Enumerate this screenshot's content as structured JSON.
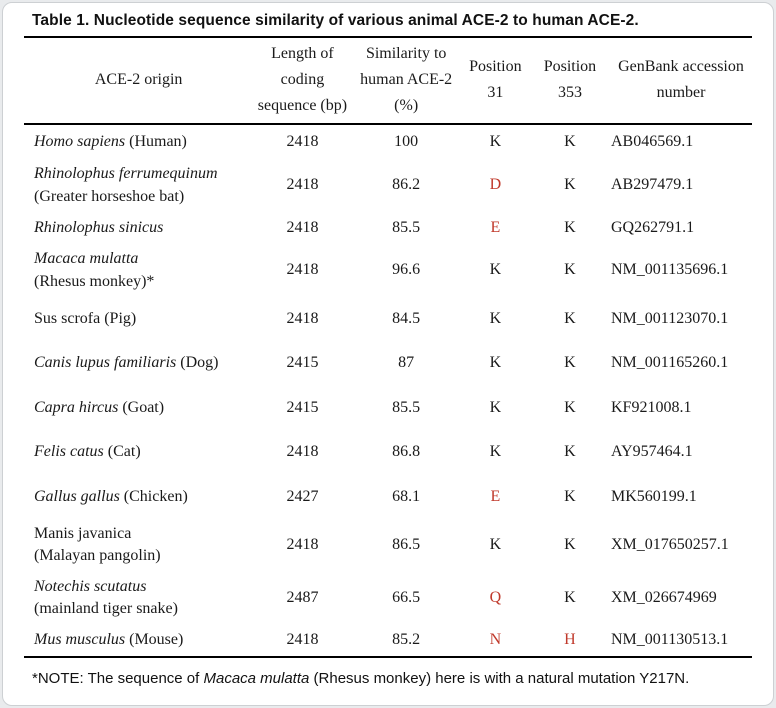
{
  "card": {
    "title": "Table 1. Nucleotide sequence similarity of various animal ACE-2 to human ACE-2."
  },
  "table": {
    "columns": [
      "ACE-2 origin",
      "Length of coding sequence (bp)",
      "Similarity to human ACE-2 (%)",
      "Position 31",
      "Position 353",
      "GenBank accession number"
    ],
    "rows": [
      {
        "origin": [
          {
            "t": "Homo sapiens",
            "i": true
          },
          {
            "t": " (Human)",
            "i": false
          }
        ],
        "length": "2418",
        "similarity": "100",
        "pos31": {
          "v": "K",
          "red": false
        },
        "pos353": {
          "v": "K",
          "red": false
        },
        "genbank": "AB046569.1"
      },
      {
        "origin": [
          {
            "t": "Rhinolophus ferrumequinum",
            "i": true
          },
          {
            "t": "(Greater horseshoe bat)",
            "i": false,
            "br": true
          }
        ],
        "length": "2418",
        "similarity": "86.2",
        "pos31": {
          "v": "D",
          "red": true
        },
        "pos353": {
          "v": "K",
          "red": false
        },
        "genbank": "AB297479.1"
      },
      {
        "origin": [
          {
            "t": "Rhinolophus sinicus",
            "i": true
          }
        ],
        "length": "2418",
        "similarity": "85.5",
        "pos31": {
          "v": "E",
          "red": true
        },
        "pos353": {
          "v": "K",
          "red": false
        },
        "genbank": "GQ262791.1"
      },
      {
        "origin": [
          {
            "t": "Macaca mulatta",
            "i": true
          },
          {
            "t": "(Rhesus monkey)*",
            "i": false,
            "br": true
          }
        ],
        "length": "2418",
        "similarity": "96.6",
        "pos31": {
          "v": "K",
          "red": false
        },
        "pos353": {
          "v": "K",
          "red": false
        },
        "genbank": "NM_001135696.1"
      },
      {
        "origin": [
          {
            "t": "Sus scrofa (Pig)",
            "i": false
          }
        ],
        "length": "2418",
        "similarity": "84.5",
        "pos31": {
          "v": "K",
          "red": false
        },
        "pos353": {
          "v": "K",
          "red": false
        },
        "genbank": "NM_001123070.1"
      },
      {
        "origin": [
          {
            "t": "Canis lupus familiaris",
            "i": true
          },
          {
            "t": " (Dog)",
            "i": false
          }
        ],
        "length": "2415",
        "similarity": "87",
        "pos31": {
          "v": "K",
          "red": false
        },
        "pos353": {
          "v": "K",
          "red": false
        },
        "genbank": "NM_001165260.1"
      },
      {
        "origin": [
          {
            "t": "Capra hircus",
            "i": true
          },
          {
            "t": " (Goat)",
            "i": false
          }
        ],
        "length": "2415",
        "similarity": "85.5",
        "pos31": {
          "v": "K",
          "red": false
        },
        "pos353": {
          "v": "K",
          "red": false
        },
        "genbank": "KF921008.1"
      },
      {
        "origin": [
          {
            "t": "Felis catus",
            "i": true
          },
          {
            "t": " (Cat)",
            "i": false
          }
        ],
        "length": "2418",
        "similarity": "86.8",
        "pos31": {
          "v": "K",
          "red": false
        },
        "pos353": {
          "v": "K",
          "red": false
        },
        "genbank": "AY957464.1"
      },
      {
        "origin": [
          {
            "t": "Gallus gallus",
            "i": true
          },
          {
            "t": " (Chicken)",
            "i": false
          }
        ],
        "length": "2427",
        "similarity": "68.1",
        "pos31": {
          "v": "E",
          "red": true
        },
        "pos353": {
          "v": "K",
          "red": false
        },
        "genbank": "MK560199.1"
      },
      {
        "origin": [
          {
            "t": "Manis javanica",
            "i": false
          },
          {
            "t": "(Malayan pangolin)",
            "i": false,
            "br": true
          }
        ],
        "length": "2418",
        "similarity": "86.5",
        "pos31": {
          "v": "K",
          "red": false
        },
        "pos353": {
          "v": "K",
          "red": false
        },
        "genbank": "XM_017650257.1"
      },
      {
        "origin": [
          {
            "t": "Notechis scutatus",
            "i": true
          },
          {
            "t": "(mainland tiger snake)",
            "i": false,
            "br": true
          }
        ],
        "length": "2487",
        "similarity": "66.5",
        "pos31": {
          "v": "Q",
          "red": true
        },
        "pos353": {
          "v": "K",
          "red": false
        },
        "genbank": "XM_026674969"
      },
      {
        "origin": [
          {
            "t": "Mus musculus",
            "i": true
          },
          {
            "t": " (Mouse)",
            "i": false
          }
        ],
        "length": "2418",
        "similarity": "85.2",
        "pos31": {
          "v": "N",
          "red": true
        },
        "pos353": {
          "v": "H",
          "red": true
        },
        "genbank": "NM_001130513.1"
      }
    ]
  },
  "note": {
    "segments": [
      {
        "t": "*NOTE: The sequence of ",
        "i": false
      },
      {
        "t": "Macaca mulatta",
        "i": true
      },
      {
        "t": " (Rhesus monkey) here is with a natural mutation Y217N.",
        "i": false
      }
    ]
  },
  "colors": {
    "mutation_red": "#c0392b",
    "text": "#1a1a1a",
    "rule": "#000000"
  }
}
